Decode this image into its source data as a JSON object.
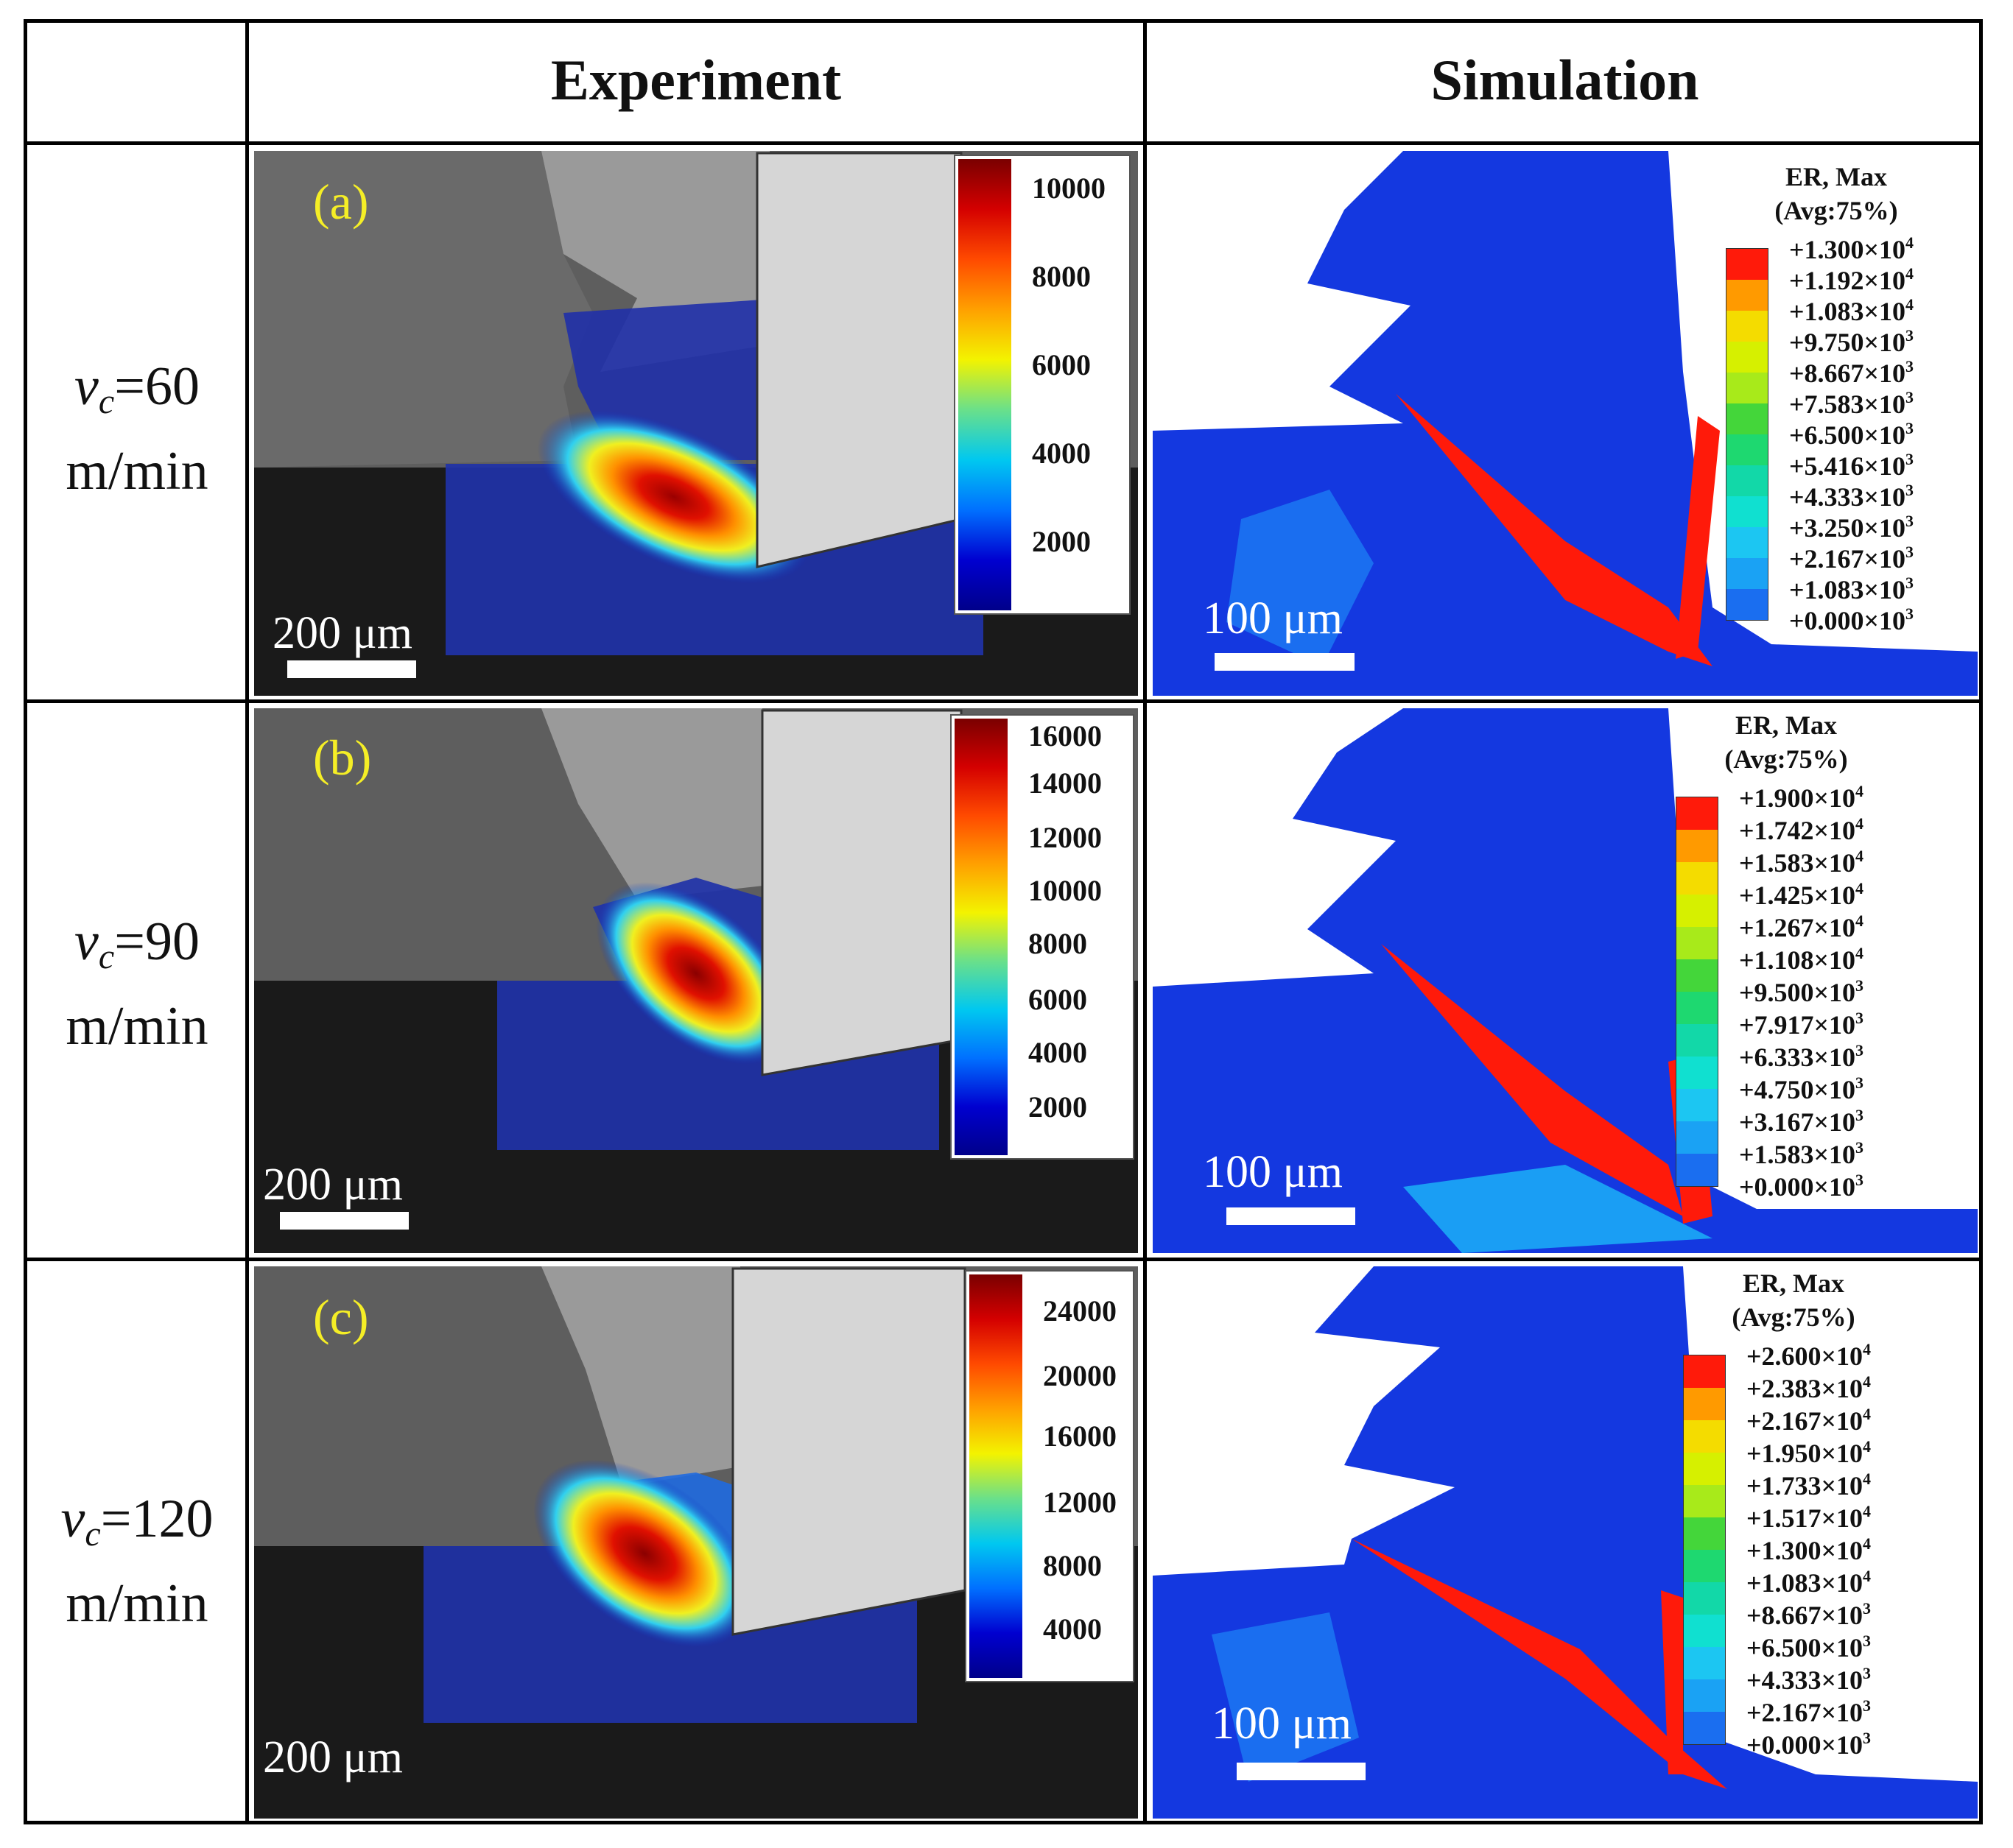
{
  "headers": {
    "experiment": "Experiment",
    "simulation": "Simulation"
  },
  "rows": [
    {
      "speed": "=60",
      "unit": "m/min",
      "tag": "(a)",
      "exp_scale": "200 μm",
      "exp_ticks": [
        "10000",
        "8000",
        "6000",
        "4000",
        "2000"
      ],
      "sim_scale": "100 μm",
      "legend_title": "ER, Max",
      "legend_avg": "(Avg:75%)",
      "legend_values": [
        "+1.300×10",
        "+1.192×10",
        "+1.083×10",
        "+9.750×10",
        "+8.667×10",
        "+7.583×10",
        "+6.500×10",
        "+5.416×10",
        "+4.333×10",
        "+3.250×10",
        "+2.167×10",
        "+1.083×10",
        "+0.000×10"
      ],
      "legend_exps": [
        "4",
        "4",
        "4",
        "3",
        "3",
        "3",
        "3",
        "3",
        "3",
        "3",
        "3",
        "3",
        "3"
      ]
    },
    {
      "speed": "=90",
      "unit": "m/min",
      "tag": "(b)",
      "exp_scale": "200 μm",
      "exp_ticks": [
        "16000",
        "14000",
        "12000",
        "10000",
        "8000",
        "6000",
        "4000",
        "2000"
      ],
      "sim_scale": "100 μm",
      "legend_title": "ER, Max",
      "legend_avg": "(Avg:75%)",
      "legend_values": [
        "+1.900×10",
        "+1.742×10",
        "+1.583×10",
        "+1.425×10",
        "+1.267×10",
        "+1.108×10",
        "+9.500×10",
        "+7.917×10",
        "+6.333×10",
        "+4.750×10",
        "+3.167×10",
        "+1.583×10",
        "+0.000×10"
      ],
      "legend_exps": [
        "4",
        "4",
        "4",
        "4",
        "4",
        "4",
        "3",
        "3",
        "3",
        "3",
        "3",
        "3",
        "3"
      ]
    },
    {
      "speed": "=120",
      "unit": "m/min",
      "tag": "(c)",
      "exp_scale": "200 μm",
      "exp_ticks": [
        "24000",
        "20000",
        "16000",
        "12000",
        "8000",
        "4000"
      ],
      "sim_scale": "100 μm",
      "legend_title": "ER, Max",
      "legend_avg": "(Avg:75%)",
      "legend_values": [
        "+2.600×10",
        "+2.383×10",
        "+2.167×10",
        "+1.950×10",
        "+1.733×10",
        "+1.517×10",
        "+1.300×10",
        "+1.083×10",
        "+8.667×10",
        "+6.500×10",
        "+4.333×10",
        "+2.167×10",
        "+0.000×10"
      ],
      "legend_exps": [
        "4",
        "4",
        "4",
        "4",
        "4",
        "4",
        "4",
        "4",
        "3",
        "3",
        "3",
        "3",
        "3"
      ]
    }
  ],
  "velocity_symbol": "v",
  "velocity_subscript": "c",
  "legend_colors": [
    "#ff1a0a",
    "#ff9a00",
    "#f4dc00",
    "#d6f000",
    "#a8ea1a",
    "#44d63a",
    "#1ed870",
    "#12d8a8",
    "#10e0d0",
    "#1cc6f2",
    "#1aa2f4",
    "#1a6ef0",
    "#1444e8"
  ]
}
